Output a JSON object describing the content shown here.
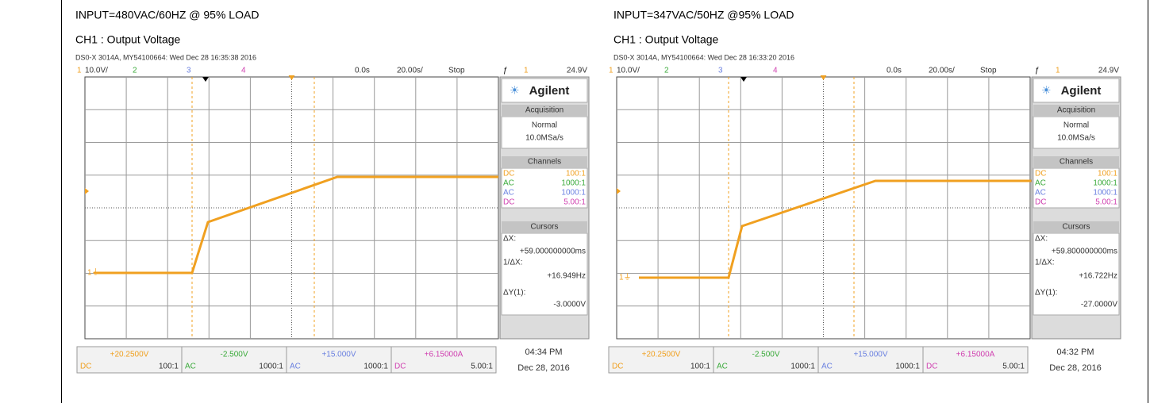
{
  "panels": [
    {
      "title": "INPUT=480VAC/60HZ @ 95% LOAD",
      "subtitle": "CH1 : Output Voltage",
      "scope_info": "DS0-X 3014A, MY54100664: Wed Dec 28 16:35:38 2016",
      "header": {
        "ch1": "1",
        "ch1_scale": "10.0V/",
        "ch2": "2",
        "ch3": "3",
        "ch4": "4",
        "time_offset": "0.0s",
        "time_scale": "20.00s/",
        "run_state": "Stop",
        "trigger_channel": "1",
        "trigger_level": "24.9V"
      },
      "sidebar": {
        "brand": "Agilent",
        "acquisition_title": "Acquisition",
        "acquisition_mode": "Normal",
        "sample_rate": "10.0MSa/s",
        "channels_title": "Channels",
        "channels": [
          [
            "DC",
            "100:1"
          ],
          [
            "AC",
            "1000:1"
          ],
          [
            "AC",
            "1000:1"
          ],
          [
            "DC",
            "5.00:1"
          ]
        ],
        "cursors_title": "Cursors",
        "dx_label": "ΔX:",
        "dx_value": "+59.000000000ms",
        "inv_dx_label": "1/ΔX:",
        "inv_dx_value": "+16.949Hz",
        "dy_label": "ΔY(1):",
        "dy_value": "-3.0000V"
      },
      "footer": {
        "channels": [
          [
            "+20.2500V",
            "DC",
            "100:1"
          ],
          [
            "-2.500V",
            "AC",
            "1000:1"
          ],
          [
            "+15.000V",
            "AC",
            "1000:1"
          ],
          [
            "+6.15000A",
            "DC",
            "5.00:1"
          ]
        ],
        "time": "04:34 PM",
        "date": "Dec 28, 2016"
      }
    },
    {
      "title": "INPUT=347VAC/50HZ @95% LOAD",
      "subtitle": "CH1 : Output Voltage",
      "scope_info": "DS0-X 3014A, MY54100664: Wed Dec 28 16:33:20 2016",
      "header": {
        "ch1": "1",
        "ch1_scale": "10.0V/",
        "ch2": "2",
        "ch3": "3",
        "ch4": "4",
        "time_offset": "0.0s",
        "time_scale": "20.00s/",
        "run_state": "Stop",
        "trigger_channel": "1",
        "trigger_level": "24.9V"
      },
      "sidebar": {
        "brand": "Agilent",
        "acquisition_title": "Acquisition",
        "acquisition_mode": "Normal",
        "sample_rate": "10.0MSa/s",
        "channels_title": "Channels",
        "channels": [
          [
            "DC",
            "100:1"
          ],
          [
            "AC",
            "1000:1"
          ],
          [
            "AC",
            "1000:1"
          ],
          [
            "DC",
            "5.00:1"
          ]
        ],
        "cursors_title": "Cursors",
        "dx_label": "ΔX:",
        "dx_value": "+59.800000000ms",
        "inv_dx_label": "1/ΔX:",
        "inv_dx_value": "+16.722Hz",
        "dy_label": "ΔY(1):",
        "dy_value": "-27.0000V"
      },
      "footer": {
        "channels": [
          [
            "+20.2500V",
            "DC",
            "100:1"
          ],
          [
            "-2.500V",
            "AC",
            "1000:1"
          ],
          [
            "+15.000V",
            "AC",
            "1000:1"
          ],
          [
            "+6.15000A",
            "DC",
            "5.00:1"
          ]
        ],
        "time": "04:32 PM",
        "date": "Dec 28, 2016"
      }
    }
  ]
}
